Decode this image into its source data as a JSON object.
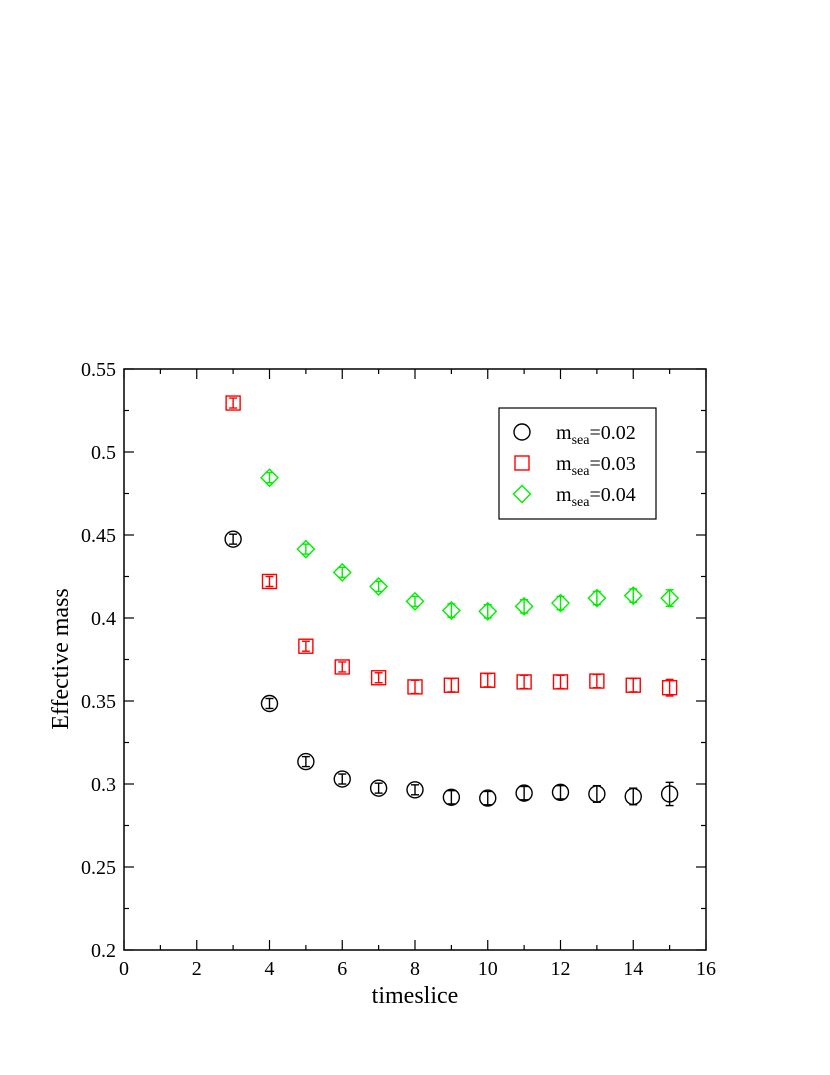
{
  "chart_data": {
    "type": "scatter",
    "xlabel": "timeslice",
    "ylabel": "Effective mass",
    "xlim": [
      0,
      16
    ],
    "ylim": [
      0.2,
      0.55
    ],
    "x_ticks": [
      "0",
      "2",
      "4",
      "6",
      "8",
      "10",
      "12",
      "14",
      "16"
    ],
    "y_ticks": [
      "0.2",
      "0.25",
      "0.3",
      "0.35",
      "0.4",
      "0.45",
      "0.5",
      "0.55"
    ],
    "grid": false,
    "legend_position": "top-right",
    "series": [
      {
        "name": "m_sea=0.02",
        "legend_main": "m",
        "legend_sub": "sea",
        "legend_value": "=0.02",
        "marker": "circle",
        "color": "#000000",
        "x": [
          3,
          4,
          5,
          6,
          7,
          8,
          9,
          10,
          11,
          12,
          13,
          14,
          15
        ],
        "y": [
          0.4475,
          0.3485,
          0.3135,
          0.303,
          0.2975,
          0.2965,
          0.292,
          0.2915,
          0.2945,
          0.295,
          0.294,
          0.2925,
          0.294
        ],
        "err": [
          0.003,
          0.003,
          0.003,
          0.003,
          0.003,
          0.003,
          0.004,
          0.004,
          0.004,
          0.004,
          0.005,
          0.005,
          0.007
        ]
      },
      {
        "name": "m_sea=0.03",
        "legend_main": "m",
        "legend_sub": "sea",
        "legend_value": "=0.03",
        "marker": "square",
        "color": "#ff0000",
        "x": [
          3,
          4,
          5,
          6,
          7,
          8,
          9,
          10,
          11,
          12,
          13,
          14,
          15
        ],
        "y": [
          0.5295,
          0.422,
          0.383,
          0.3705,
          0.364,
          0.3585,
          0.3595,
          0.3625,
          0.3615,
          0.3615,
          0.362,
          0.3595,
          0.358
        ],
        "err": [
          0.003,
          0.003,
          0.003,
          0.003,
          0.003,
          0.004,
          0.004,
          0.004,
          0.004,
          0.004,
          0.004,
          0.004,
          0.005
        ]
      },
      {
        "name": "m_sea=0.04",
        "legend_main": "m",
        "legend_sub": "sea",
        "legend_value": "=0.04",
        "marker": "diamond",
        "color": "#00ee00",
        "x": [
          4,
          5,
          6,
          7,
          8,
          9,
          10,
          11,
          12,
          13,
          14,
          15
        ],
        "y": [
          0.4845,
          0.4415,
          0.4275,
          0.419,
          0.41,
          0.4045,
          0.404,
          0.407,
          0.409,
          0.412,
          0.4135,
          0.412
        ],
        "err": [
          0.003,
          0.003,
          0.003,
          0.003,
          0.003,
          0.004,
          0.004,
          0.004,
          0.004,
          0.004,
          0.004,
          0.005
        ]
      }
    ]
  }
}
